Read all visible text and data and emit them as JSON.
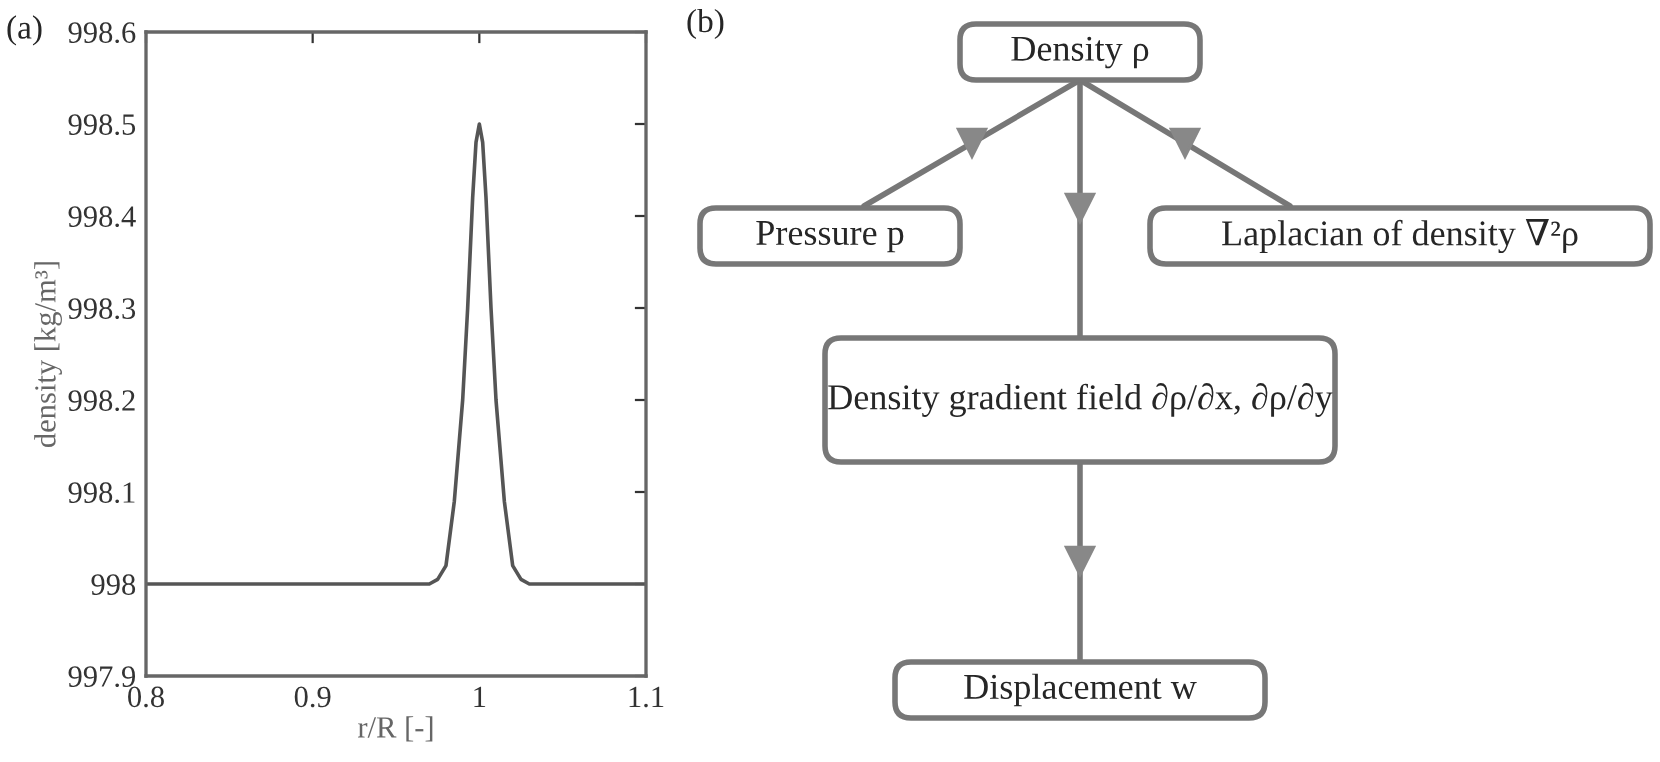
{
  "chart_data": [
    {
      "type": "line",
      "title": "(a)",
      "xlabel": "r/R [-]",
      "ylabel": "density [kg/m³]",
      "series": [
        {
          "color": "#555555",
          "x": [
            0.8,
            0.9,
            0.96,
            0.97,
            0.975,
            0.98,
            0.985,
            0.99,
            0.993,
            0.996,
            0.998,
            1.0,
            1.002,
            1.004,
            1.007,
            1.01,
            1.015,
            1.02,
            1.025,
            1.03,
            1.04,
            1.1
          ],
          "values": [
            998,
            998,
            998,
            998,
            998.005,
            998.02,
            998.09,
            998.2,
            998.3,
            998.42,
            998.48,
            998.5,
            998.48,
            998.42,
            998.3,
            998.2,
            998.09,
            998.02,
            998.005,
            998,
            998,
            998
          ]
        }
      ],
      "xlim": [
        0.8,
        1.1
      ],
      "ylim": [
        997.9,
        998.6
      ],
      "xticks": [
        0.8,
        0.9,
        1,
        1.1
      ],
      "yticks": [
        997.9,
        998,
        998.1,
        998.2,
        998.3,
        998.4,
        998.5,
        998.6
      ],
      "grid": false,
      "line_style": "solid",
      "marker": "none"
    },
    {
      "type": "other",
      "title": "(b)",
      "annotations": [
        "Density ρ",
        "Pressure p",
        "Laplacian of density ∇²ρ",
        "Density gradient field ∂ρ/∂x, ∂ρ/∂y",
        "Displacement w"
      ]
    }
  ]
}
